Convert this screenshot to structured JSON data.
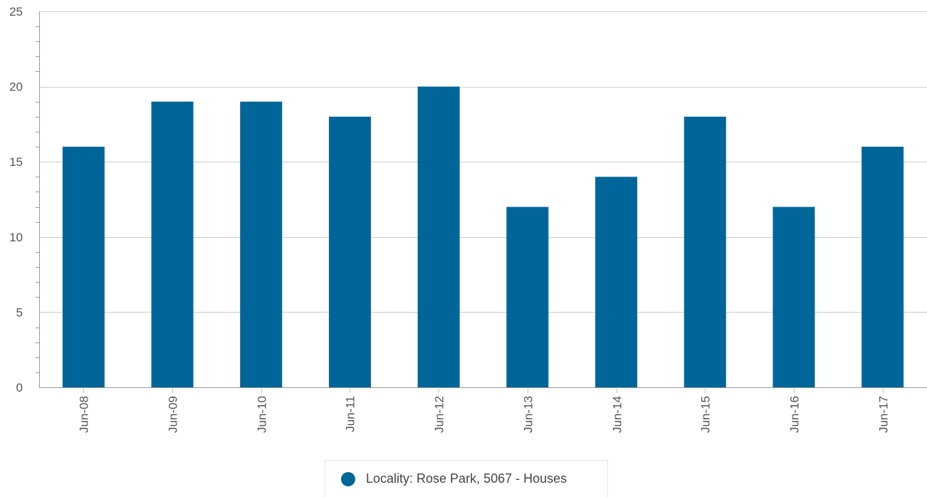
{
  "chart_data": {
    "type": "bar",
    "categories": [
      "Jun-08",
      "Jun-09",
      "Jun-10",
      "Jun-11",
      "Jun-12",
      "Jun-13",
      "Jun-14",
      "Jun-15",
      "Jun-16",
      "Jun-17"
    ],
    "series": [
      {
        "name": "Locality: Rose Park, 5067 - Houses",
        "values": [
          16,
          19,
          19,
          18,
          20,
          12,
          14,
          18,
          12,
          16
        ],
        "color": "#006699"
      }
    ],
    "ylim": [
      0,
      25
    ],
    "yticks": [
      0,
      5,
      10,
      15,
      20,
      25
    ],
    "grid": true,
    "legend_position": "bottom-center"
  }
}
